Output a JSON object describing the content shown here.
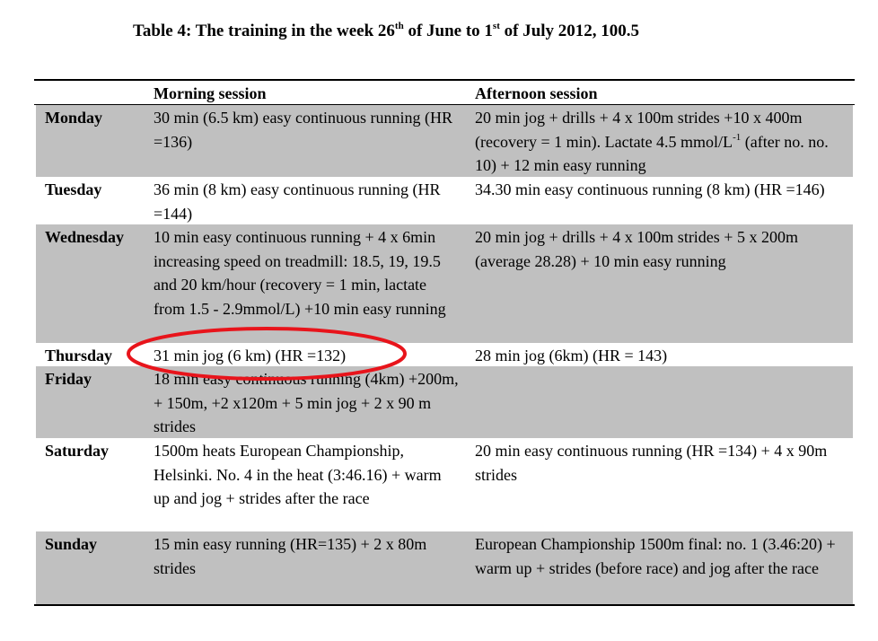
{
  "title": {
    "text_1": "Table 4: The training in the week 26",
    "sup_1": "th",
    "text_2": " of June to 1",
    "sup_2": "st",
    "text_3": " of July 2012, 100.5"
  },
  "table": {
    "headers": [
      "Morning session",
      "Afternoon session"
    ],
    "rows": [
      {
        "day": "Monday",
        "morning": "30 min (6.5 km) easy continuous running (HR =136)",
        "afternoon": [
          "20 min jog + drills + 4 x 100m strides +10 x 400m (recovery = 1 min). Lactate 4.5 mmol/L",
          "-1",
          " (after no. no. 10) + 12 min easy running"
        ]
      },
      {
        "day": "Tuesday",
        "morning": "36 min (8 km) easy continuous running (HR =144)",
        "afternoon": "34.30 min easy continuous running (8 km)  (HR =146)"
      },
      {
        "day": "Wednesday",
        "morning": "10 min easy continuous running + 4 x 6min increasing speed on treadmill: 18.5, 19, 19.5 and 20 km/hour (recovery = 1 min, lactate from 1.5 - 2.9mmol/L) +10 min easy running",
        "afternoon": "20 min jog + drills + 4 x 100m strides + 5 x 200m (average 28.28) + 10 min easy running"
      },
      {
        "day": "Thursday",
        "morning": "31 min jog (6 km) (HR =132)",
        "afternoon": "28 min jog (6km) (HR = 143)"
      },
      {
        "day": "Friday",
        "morning": "18 min easy continuous running (4km) +200m,  + 150m, +2 x120m + 5 min jog + 2 x 90 m strides"
      },
      {
        "day": "Saturday",
        "morning": "1500m heats European Championship, Helsinki. No. 4 in the heat (3:46.16) + warm up and jog + strides after the race",
        "afternoon": "20 min easy continuous running (HR =134) + 4 x 90m strides"
      },
      {
        "day": "Sunday",
        "morning": "15 min easy running (HR=135) + 2 x 80m strides",
        "afternoon": "European Championship 1500m final: no. 1 (3.46:20) + warm up + strides (before race) and jog after the race"
      }
    ]
  }
}
